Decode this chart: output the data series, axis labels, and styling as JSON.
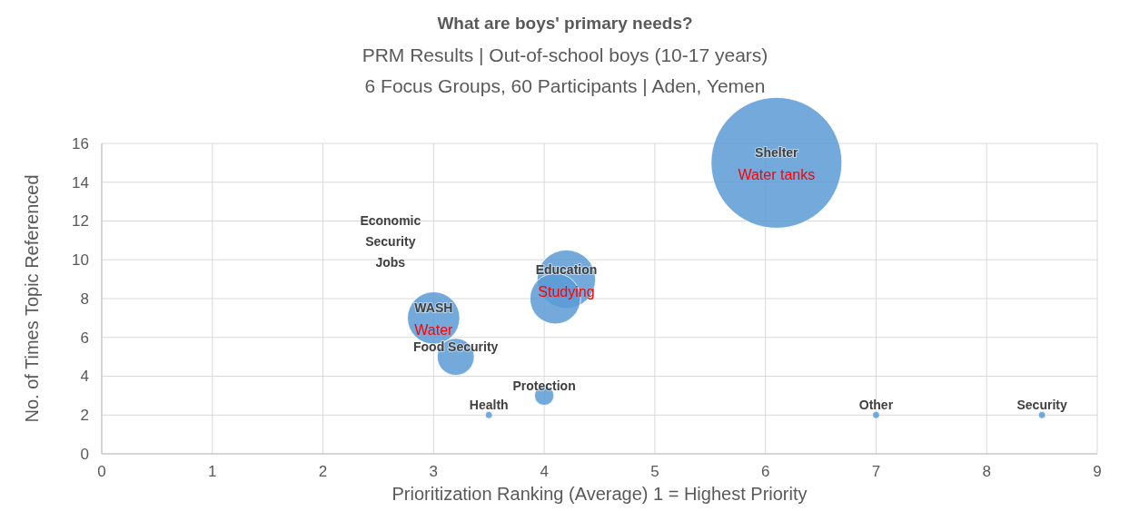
{
  "chart_data": {
    "type": "bubble",
    "title": "What are boys' primary needs?",
    "subtitle": "PRM Results | Out-of-school boys (10-17 years)\n6 Focus Groups, 60 Participants | Aden, Yemen",
    "xlabel": "Prioritization Ranking (Average) 1 = Highest Priority",
    "ylabel": "No. of Times Topic Referenced",
    "series": [
      {
        "color": "#5b9bd5",
        "x": [
          6.1,
          4.2,
          4.1,
          3.0,
          3.2,
          4.0,
          3.5,
          7.0,
          8.5
        ],
        "values": [
          15,
          9,
          8,
          7,
          5,
          3,
          2,
          2,
          2
        ],
        "sizes": [
          1,
          0.2,
          0.15,
          0.16,
          0.08,
          0.022,
          0.003,
          0.003,
          0.003
        ],
        "value_labels": [
          "Water tanks",
          "Studying",
          null,
          "Water",
          null,
          null,
          null,
          null,
          null
        ]
      }
    ],
    "annotations": [
      {
        "text": "Shelter",
        "x": 6.1,
        "y": 15
      },
      {
        "text": "Education",
        "x": 4.2,
        "y": 9
      },
      {
        "text": "WASH",
        "x": 3.0,
        "y": 7
      },
      {
        "text": "Food Security",
        "x": 3.2,
        "y": 5
      },
      {
        "text": "Protection",
        "x": 4.0,
        "y": 3
      },
      {
        "text": "Health",
        "x": 3.5,
        "y": 2
      },
      {
        "text": "Other",
        "x": 7.0,
        "y": 2
      },
      {
        "text": "Security",
        "x": 8.5,
        "y": 2
      },
      "Economic Security",
      "Jobs"
    ],
    "xlim": [
      0,
      9
    ],
    "xticks": [
      0,
      1,
      2,
      3,
      4,
      5,
      6,
      7,
      8,
      9
    ],
    "ylim": [
      0,
      16
    ],
    "yticks": [
      0,
      2,
      4,
      6,
      8,
      10,
      12,
      14,
      16
    ],
    "grid": true
  }
}
